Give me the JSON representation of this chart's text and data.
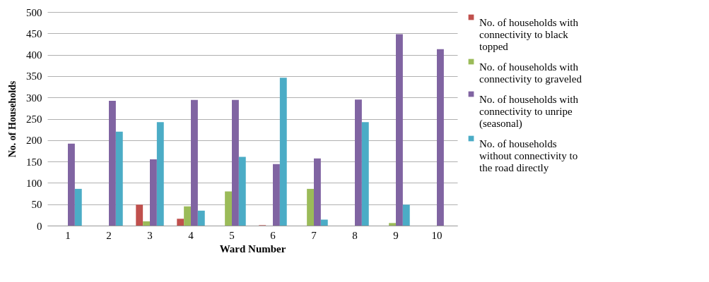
{
  "chart_data": {
    "type": "bar",
    "xlabel": "Ward Number",
    "ylabel": "No. of Households",
    "categories": [
      "1",
      "2",
      "3",
      "4",
      "5",
      "6",
      "7",
      "8",
      "9",
      "10"
    ],
    "series": [
      {
        "name": "No. of households with connectivity to black topped",
        "color": "#c0504d",
        "values": [
          0,
          0,
          49,
          16,
          0,
          1,
          0,
          0,
          0,
          0
        ]
      },
      {
        "name": "No. of households with connectivity to graveled",
        "color": "#9bbb59",
        "values": [
          0,
          0,
          10,
          45,
          80,
          0,
          86,
          0,
          6,
          0
        ]
      },
      {
        "name": "No. of households with connectivity to unripe (seasonal)",
        "color": "#8064a2",
        "values": [
          192,
          292,
          155,
          294,
          294,
          144,
          157,
          295,
          448,
          413
        ]
      },
      {
        "name": "No. of households without connectivity to the road directly",
        "color": "#4bacc6",
        "values": [
          86,
          220,
          242,
          35,
          161,
          346,
          14,
          242,
          49,
          0
        ]
      }
    ],
    "ylim": [
      0,
      500
    ],
    "yticks": [
      0,
      50,
      100,
      150,
      200,
      250,
      300,
      350,
      400,
      450,
      500
    ],
    "grid": "y",
    "legend": "right"
  }
}
